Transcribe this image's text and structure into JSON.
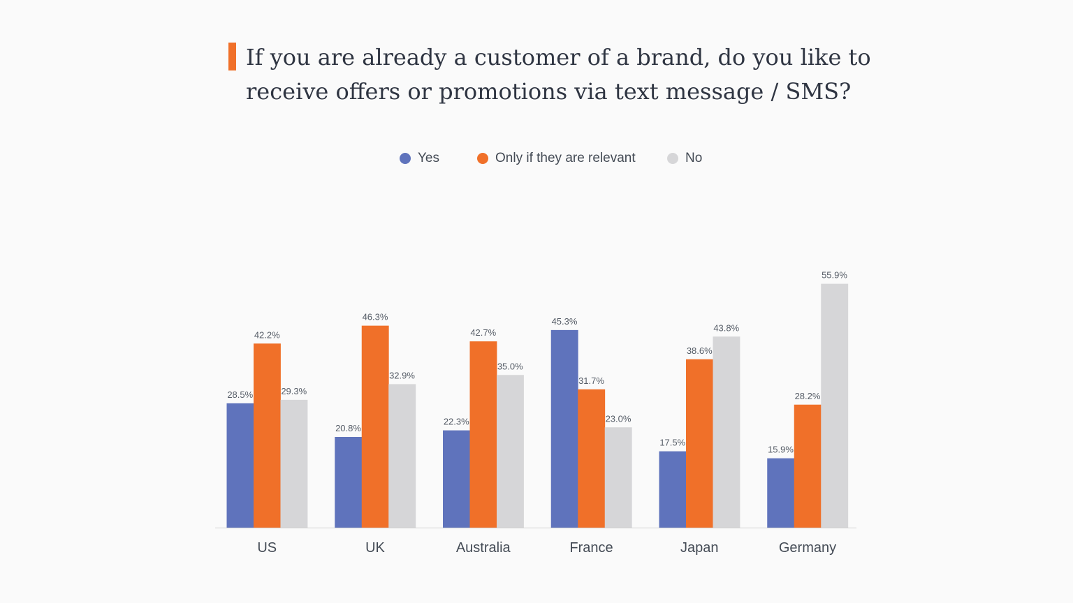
{
  "title": {
    "line1": "If you are already a customer of a brand, do you like to",
    "line2": "receive offers or promotions via text message / SMS?",
    "accent_color": "#f07029"
  },
  "chart_data": {
    "type": "bar",
    "categories": [
      "US",
      "UK",
      "Australia",
      "France",
      "Japan",
      "Germany"
    ],
    "series": [
      {
        "name": "Yes",
        "color": "#5f73bc",
        "values": [
          28.5,
          20.8,
          22.3,
          45.3,
          17.5,
          15.9
        ]
      },
      {
        "name": "Only if they are relevant",
        "color": "#f07029",
        "values": [
          42.2,
          46.3,
          42.7,
          31.7,
          38.6,
          28.2
        ]
      },
      {
        "name": "No",
        "color": "#d6d6d8",
        "values": [
          29.3,
          32.9,
          35.0,
          23.0,
          43.8,
          55.9
        ]
      }
    ],
    "value_suffix": "%",
    "ylim": [
      0,
      60
    ],
    "grid": false,
    "legend_position": "top-center",
    "xlabel": "",
    "ylabel": ""
  }
}
